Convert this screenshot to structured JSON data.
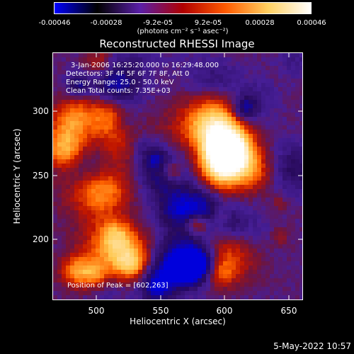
{
  "colorbar": {
    "ticks": [
      "-0.00046",
      "-0.00028",
      "-9.2e-05",
      "9.2e-05",
      "0.00028",
      "0.00046"
    ],
    "unit": "(photons cm⁻² s⁻¹ asec⁻²)",
    "colormap": [
      "#0000ff",
      "#000000",
      "#5a1fa8",
      "#b00000",
      "#ff5a00",
      "#ffd060",
      "#ffffff"
    ]
  },
  "title": "Reconstructed RHESSI Image",
  "annotations": {
    "time": "3-Jan-2006 16:25:20.000 to 16:29:48.000",
    "detectors": "Detectors: 3F 4F 5F 6F 7F 8F, Att 0",
    "energy": "Energy Range: 25.0 - 50.0 keV",
    "clean": "Clean     Total counts: 7.35E+03",
    "peak": "Position of Peak = [602,263]"
  },
  "axes": {
    "xlabel": "Heliocentric X (arcsec)",
    "ylabel": "Heliocentric Y (arcsec)",
    "xticks": [
      "500",
      "550",
      "600",
      "650"
    ],
    "yticks": [
      "300",
      "250",
      "200"
    ],
    "xlim": [
      465,
      660
    ],
    "ylim": [
      148,
      340
    ]
  },
  "peak": {
    "x": 602,
    "y": 263
  },
  "footer": {
    "date": "5-May-2022 10:57"
  }
}
